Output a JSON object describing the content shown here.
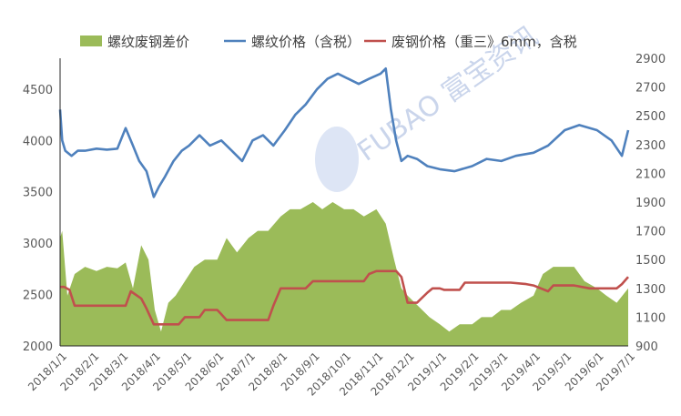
{
  "chart_data": {
    "type": "line",
    "title": "",
    "legend_placement": "top",
    "grid": false,
    "watermark": "FUBAO 富宝资讯",
    "left_axis": {
      "ticks": [
        2000,
        2500,
        3000,
        3500,
        4000,
        4500
      ],
      "range": [
        2000,
        4800
      ]
    },
    "right_axis": {
      "ticks": [
        900,
        1100,
        1300,
        1500,
        1700,
        1900,
        2100,
        2300,
        2500,
        2700,
        2900
      ],
      "range": [
        900,
        2900
      ]
    },
    "x_range": [
      "2018-01-01",
      "2019-07-01"
    ],
    "x_ticks": [
      "2018/1/1",
      "2018/2/1",
      "2018/3/1",
      "2018/4/1",
      "2018/5/1",
      "2018/6/1",
      "2018/7/1",
      "2018/8/1",
      "2018/9/1",
      "2018/10/1",
      "2018/11/1",
      "2018/12/1",
      "2019/1/1",
      "2019/2/1",
      "2019/3/1",
      "2019/4/1",
      "2019/5/1",
      "2019/6/1",
      "2019/7/1"
    ],
    "series": [
      {
        "name": "螺纹废钢差价",
        "kind": "area",
        "axis": "right",
        "color": "#9bbb59",
        "x": [
          "2018-01-01",
          "2018-01-03",
          "2018-01-08",
          "2018-01-15",
          "2018-01-25",
          "2018-02-05",
          "2018-02-15",
          "2018-02-25",
          "2018-03-05",
          "2018-03-12",
          "2018-03-20",
          "2018-03-27",
          "2018-04-02",
          "2018-04-08",
          "2018-04-15",
          "2018-04-22",
          "2018-05-01",
          "2018-05-10",
          "2018-05-20",
          "2018-06-01",
          "2018-06-10",
          "2018-06-20",
          "2018-07-01",
          "2018-07-10",
          "2018-07-20",
          "2018-08-01",
          "2018-08-10",
          "2018-08-20",
          "2018-09-01",
          "2018-09-10",
          "2018-09-20",
          "2018-10-01",
          "2018-10-10",
          "2018-10-20",
          "2018-11-01",
          "2018-11-10",
          "2018-11-18",
          "2018-11-25",
          "2018-12-01",
          "2018-12-08",
          "2018-12-15",
          "2018-12-22",
          "2019-01-01",
          "2019-01-10",
          "2019-01-20",
          "2019-02-01",
          "2019-02-10",
          "2019-02-20",
          "2019-03-01",
          "2019-03-10",
          "2019-03-20",
          "2019-04-01",
          "2019-04-10",
          "2019-04-20",
          "2019-05-01",
          "2019-05-10",
          "2019-05-20",
          "2019-06-01",
          "2019-06-10",
          "2019-06-20",
          "2019-07-01"
        ],
        "values": [
          1650,
          1700,
          1250,
          1400,
          1450,
          1420,
          1450,
          1440,
          1480,
          1300,
          1600,
          1500,
          1150,
          1000,
          1200,
          1250,
          1350,
          1450,
          1500,
          1500,
          1650,
          1550,
          1650,
          1700,
          1700,
          1800,
          1850,
          1850,
          1900,
          1850,
          1900,
          1850,
          1850,
          1800,
          1850,
          1750,
          1500,
          1300,
          1250,
          1200,
          1150,
          1100,
          1050,
          1000,
          1050,
          1050,
          1100,
          1100,
          1150,
          1150,
          1200,
          1250,
          1400,
          1450,
          1450,
          1450,
          1350,
          1300,
          1250,
          1200,
          1300
        ]
      },
      {
        "name": "螺纹价格（含税）",
        "kind": "line",
        "axis": "left",
        "color": "#4f81bd",
        "x": [
          "2018-01-01",
          "2018-01-03",
          "2018-01-06",
          "2018-01-12",
          "2018-01-18",
          "2018-01-25",
          "2018-02-05",
          "2018-02-15",
          "2018-02-25",
          "2018-03-05",
          "2018-03-12",
          "2018-03-18",
          "2018-03-25",
          "2018-04-01",
          "2018-04-06",
          "2018-04-12",
          "2018-04-20",
          "2018-04-28",
          "2018-05-05",
          "2018-05-15",
          "2018-05-25",
          "2018-06-05",
          "2018-06-15",
          "2018-06-25",
          "2018-07-05",
          "2018-07-15",
          "2018-07-25",
          "2018-08-05",
          "2018-08-15",
          "2018-08-25",
          "2018-09-05",
          "2018-09-15",
          "2018-09-25",
          "2018-10-05",
          "2018-10-15",
          "2018-10-25",
          "2018-11-05",
          "2018-11-10",
          "2018-11-15",
          "2018-11-20",
          "2018-11-25",
          "2018-12-01",
          "2018-12-10",
          "2018-12-20",
          "2019-01-01",
          "2019-01-15",
          "2019-02-01",
          "2019-02-15",
          "2019-03-01",
          "2019-03-15",
          "2019-04-01",
          "2019-04-15",
          "2019-05-01",
          "2019-05-15",
          "2019-06-01",
          "2019-06-15",
          "2019-06-25",
          "2019-07-01"
        ],
        "values": [
          4300,
          4000,
          3900,
          3850,
          3900,
          3900,
          3920,
          3910,
          3920,
          4120,
          3950,
          3800,
          3700,
          3450,
          3550,
          3650,
          3800,
          3900,
          3950,
          4050,
          3950,
          4000,
          3900,
          3800,
          4000,
          4050,
          3950,
          4100,
          4250,
          4350,
          4500,
          4600,
          4650,
          4600,
          4550,
          4600,
          4650,
          4700,
          4300,
          4000,
          3800,
          3850,
          3820,
          3750,
          3720,
          3700,
          3750,
          3820,
          3800,
          3850,
          3880,
          3950,
          4100,
          4150,
          4100,
          4000,
          3850,
          4100
        ]
      },
      {
        "name": "废钢价格（重三》6mm，含税",
        "kind": "line",
        "axis": "right",
        "color": "#c0504d",
        "x": [
          "2018-01-01",
          "2018-01-05",
          "2018-01-10",
          "2018-01-15",
          "2018-02-20",
          "2018-03-05",
          "2018-03-10",
          "2018-03-20",
          "2018-03-25",
          "2018-04-01",
          "2018-04-08",
          "2018-04-25",
          "2018-05-01",
          "2018-05-15",
          "2018-05-20",
          "2018-06-01",
          "2018-06-05",
          "2018-06-10",
          "2018-07-01",
          "2018-07-20",
          "2018-07-25",
          "2018-08-01",
          "2018-08-05",
          "2018-08-25",
          "2018-09-01",
          "2018-09-05",
          "2018-09-20",
          "2018-10-20",
          "2018-10-25",
          "2018-11-01",
          "2018-11-20",
          "2018-11-25",
          "2018-12-01",
          "2018-12-10",
          "2018-12-20",
          "2018-12-25",
          "2019-01-01",
          "2019-01-05",
          "2019-01-20",
          "2019-01-25",
          "2019-02-10",
          "2019-03-01",
          "2019-03-10",
          "2019-03-25",
          "2019-04-01",
          "2019-04-15",
          "2019-04-20",
          "2019-05-10",
          "2019-05-25",
          "2019-06-01",
          "2019-06-20",
          "2019-06-25",
          "2019-07-01"
        ],
        "values": [
          1310,
          1310,
          1290,
          1180,
          1180,
          1180,
          1280,
          1230,
          1160,
          1050,
          1050,
          1050,
          1100,
          1100,
          1150,
          1150,
          1120,
          1080,
          1080,
          1080,
          1180,
          1300,
          1300,
          1300,
          1350,
          1350,
          1350,
          1350,
          1400,
          1420,
          1420,
          1380,
          1200,
          1200,
          1270,
          1300,
          1300,
          1290,
          1290,
          1340,
          1340,
          1340,
          1340,
          1330,
          1320,
          1280,
          1320,
          1320,
          1300,
          1300,
          1300,
          1330,
          1380
        ]
      }
    ]
  }
}
